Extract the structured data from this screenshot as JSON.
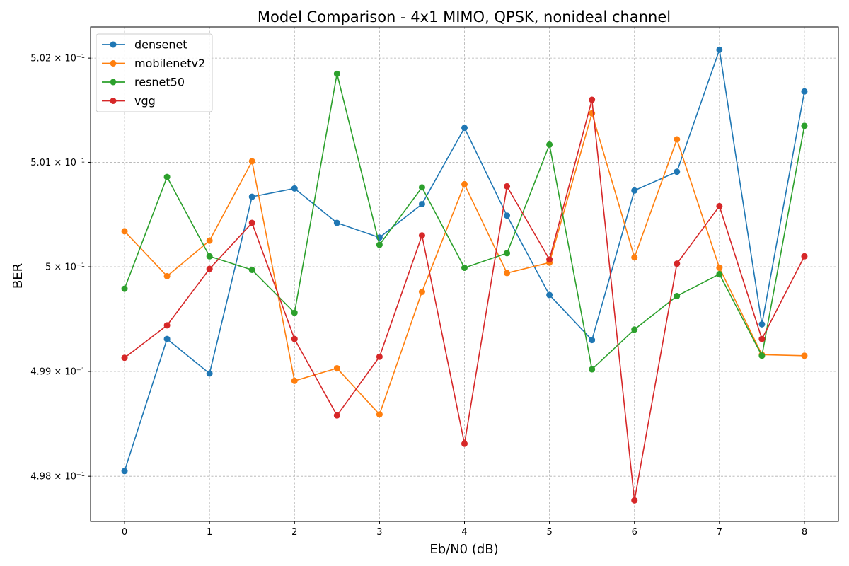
{
  "chart_data": {
    "type": "line",
    "title": "Model Comparison - 4x1 MIMO, QPSK, nonideal channel",
    "xlabel": "Eb/N0 (dB)",
    "ylabel": "BER",
    "x": [
      0,
      0.5,
      1,
      1.5,
      2,
      2.5,
      3,
      3.5,
      4,
      4.5,
      5,
      5.5,
      6,
      6.5,
      7,
      7.5,
      8
    ],
    "xlim": [
      -0.4,
      8.4
    ],
    "ylim": [
      0.49757,
      0.5023
    ],
    "yscale": "log",
    "xticks": [
      0,
      1,
      2,
      3,
      4,
      5,
      6,
      7,
      8
    ],
    "xtick_labels": [
      "0",
      "1",
      "2",
      "3",
      "4",
      "5",
      "6",
      "7",
      "8"
    ],
    "yticks": [
      0.498,
      0.499,
      0.5,
      0.501,
      0.502
    ],
    "ytick_labels": [
      "4.98 × 10⁻¹",
      "4.99 × 10⁻¹",
      "5 × 10⁻¹",
      "5.01 × 10⁻¹",
      "5.02 × 10⁻¹"
    ],
    "grid": true,
    "legend_position": "top-left",
    "series": [
      {
        "name": "densenet",
        "color": "#1f77b4",
        "values": [
          0.49805,
          0.49931,
          0.49898,
          0.50067,
          0.50075,
          0.50042,
          0.50028,
          0.5006,
          0.50133,
          0.50049,
          0.49973,
          0.4993,
          0.50073,
          0.50091,
          0.50208,
          0.49945,
          0.50168
        ]
      },
      {
        "name": "mobilenetv2",
        "color": "#ff7f0e",
        "values": [
          0.50034,
          0.49991,
          0.50025,
          0.50101,
          0.49891,
          0.49903,
          0.49859,
          0.49976,
          0.50079,
          0.49994,
          0.50004,
          0.50147,
          0.50009,
          0.50122,
          0.49999,
          0.49916,
          0.49915
        ]
      },
      {
        "name": "resnet50",
        "color": "#2ca02c",
        "values": [
          0.49979,
          0.50086,
          0.5001,
          0.49997,
          0.49956,
          0.50185,
          0.50021,
          0.50076,
          0.49999,
          0.50013,
          0.50117,
          0.49902,
          0.4994,
          0.49972,
          0.49993,
          0.49915,
          0.50135
        ]
      },
      {
        "name": "vgg",
        "color": "#d62728",
        "values": [
          0.49913,
          0.49944,
          0.49998,
          0.50042,
          0.49931,
          0.49858,
          0.49914,
          0.5003,
          0.49831,
          0.50077,
          0.50007,
          0.5016,
          0.49777,
          0.50003,
          0.50058,
          0.49931,
          0.5001
        ]
      }
    ]
  }
}
